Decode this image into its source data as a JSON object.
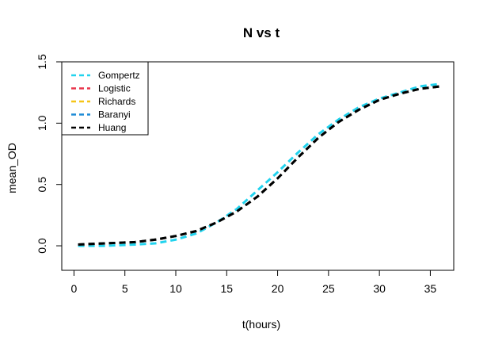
{
  "chart_data": {
    "type": "line",
    "title": "N vs t",
    "xlabel": "t(hours)",
    "ylabel": "mean_OD",
    "xlim": [
      0,
      36
    ],
    "ylim": [
      -0.2,
      1.5
    ],
    "xticks": [
      0,
      5,
      10,
      15,
      20,
      25,
      30,
      35
    ],
    "yticks": [
      0.0,
      0.5,
      1.0,
      1.5
    ],
    "xtick_labels": [
      "0",
      "5",
      "10",
      "15",
      "20",
      "25",
      "30",
      "35"
    ],
    "ytick_labels": [
      "0.0",
      "0.5",
      "1.0",
      "1.5"
    ],
    "grid": false,
    "legend_position": "top-left",
    "x": [
      0.4,
      3,
      6,
      8,
      10,
      12,
      14,
      16,
      18,
      20,
      22,
      24,
      26,
      28,
      30,
      32,
      34,
      36
    ],
    "series": [
      {
        "name": "Gompertz",
        "color": "#22d3ee",
        "values": [
          0.0,
          0.0,
          0.01,
          0.02,
          0.05,
          0.1,
          0.19,
          0.3,
          0.45,
          0.6,
          0.76,
          0.91,
          1.03,
          1.13,
          1.2,
          1.25,
          1.3,
          1.32
        ]
      },
      {
        "name": "Logistic",
        "color": "#e8334a",
        "values": [
          0.01,
          0.02,
          0.03,
          0.05,
          0.08,
          0.12,
          0.19,
          0.28,
          0.4,
          0.55,
          0.72,
          0.88,
          1.01,
          1.11,
          1.19,
          1.24,
          1.28,
          1.3
        ]
      },
      {
        "name": "Richards",
        "color": "#f5c518",
        "values": [
          0.01,
          0.02,
          0.03,
          0.05,
          0.08,
          0.12,
          0.19,
          0.28,
          0.4,
          0.55,
          0.72,
          0.88,
          1.01,
          1.11,
          1.19,
          1.24,
          1.28,
          1.3
        ]
      },
      {
        "name": "Baranyi",
        "color": "#1f8bd6",
        "values": [
          0.01,
          0.02,
          0.03,
          0.05,
          0.08,
          0.12,
          0.19,
          0.28,
          0.4,
          0.55,
          0.72,
          0.88,
          1.01,
          1.11,
          1.19,
          1.24,
          1.28,
          1.3
        ]
      },
      {
        "name": "Huang",
        "color": "#000000",
        "values": [
          0.01,
          0.02,
          0.03,
          0.05,
          0.08,
          0.12,
          0.19,
          0.28,
          0.4,
          0.55,
          0.72,
          0.88,
          1.01,
          1.11,
          1.19,
          1.24,
          1.28,
          1.3
        ]
      }
    ]
  }
}
